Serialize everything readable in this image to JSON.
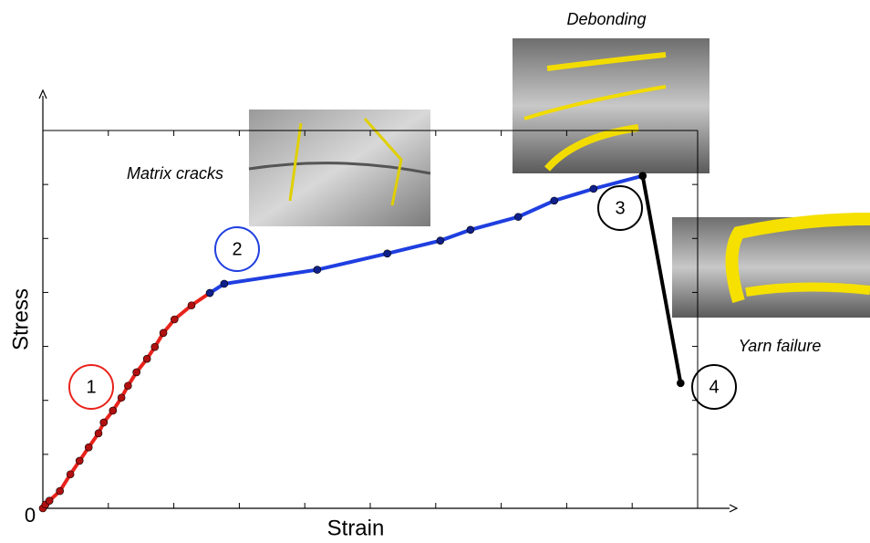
{
  "chart_data": {
    "type": "line",
    "x_label": "Strain",
    "y_label": "Stress",
    "origin_label": "0",
    "xlim": [
      0,
      10
    ],
    "ylim": [
      0,
      7
    ],
    "xticks": [
      0,
      1,
      2,
      3,
      4,
      5,
      6,
      7,
      8,
      9,
      10
    ],
    "yticks": [
      0,
      1,
      2,
      3,
      4,
      5,
      6,
      7
    ],
    "series": [
      {
        "color": "#e8231c",
        "marker_color": "#b01010",
        "x": [
          0,
          0.04,
          0.1,
          0.26,
          0.42,
          0.56,
          0.7,
          0.85,
          0.93,
          1.07,
          1.2,
          1.3,
          1.43,
          1.59,
          1.71,
          1.84,
          2.01,
          2.27,
          2.55
        ],
        "values": [
          0,
          0.07,
          0.14,
          0.32,
          0.63,
          0.88,
          1.13,
          1.39,
          1.59,
          1.81,
          2.05,
          2.27,
          2.52,
          2.77,
          2.99,
          3.25,
          3.5,
          3.76,
          3.99
        ]
      },
      {
        "color": "#1f3fe0",
        "marker_color": "#10208a",
        "x": [
          2.55,
          2.77,
          4.19,
          5.26,
          6.07,
          6.53,
          7.26,
          7.81,
          8.41,
          9.16
        ],
        "values": [
          3.99,
          4.16,
          4.42,
          4.72,
          4.96,
          5.16,
          5.4,
          5.7,
          5.92,
          6.16
        ]
      },
      {
        "color": "#000000",
        "marker_color": "#000000",
        "x": [
          9.16,
          9.74
        ],
        "values": [
          6.16,
          2.32
        ]
      }
    ],
    "stages": [
      {
        "text": "1",
        "color": "#e8231c"
      },
      {
        "text": "2",
        "color": "#1f3fe0"
      },
      {
        "text": "3",
        "color": "#000000"
      },
      {
        "text": "4",
        "color": "#000000"
      }
    ],
    "annotations": [
      "Matrix cracks",
      "Debonding",
      "Yarn failure"
    ]
  }
}
